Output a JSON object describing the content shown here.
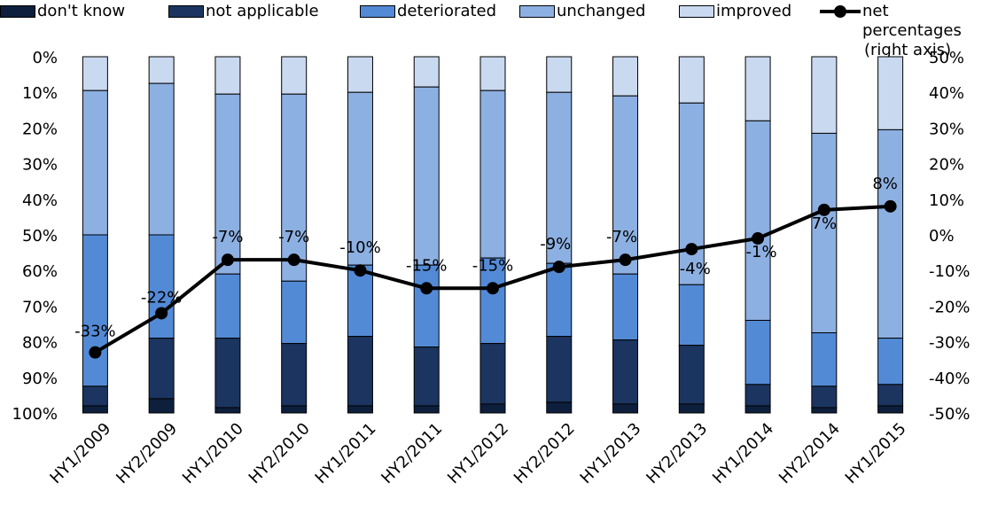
{
  "legend": {
    "dont_know": "don't know",
    "not_applicable": "not applicable",
    "deteriorated": "deteriorated",
    "unchanged": "unchanged",
    "improved": "improved",
    "net_line1": "net percentages",
    "net_line2": "(right axis)"
  },
  "colors": {
    "dont_know": "#0d1f3c",
    "not_applicable": "#1b3560",
    "deteriorated": "#538ad6",
    "unchanged": "#8db0e2",
    "improved": "#c9d9f0",
    "line": "#000000"
  },
  "chart_data": {
    "type": "bar",
    "stacked": true,
    "categories": [
      "HY1/2009",
      "HY2/2009",
      "HY1/2010",
      "HY2/2010",
      "HY1/2011",
      "HY2/2011",
      "HY1/2012",
      "HY2/2012",
      "HY1/2013",
      "HY2/2013",
      "HY1/2014",
      "HY2/2014",
      "HY1/2015"
    ],
    "series": [
      {
        "name": "improved",
        "values": [
          9.5,
          7.5,
          10.5,
          10.5,
          10,
          8.5,
          9.5,
          10,
          11,
          13,
          18,
          21.5,
          20.5
        ]
      },
      {
        "name": "unchanged",
        "values": [
          40.5,
          42.5,
          50.5,
          52.5,
          48.5,
          50,
          47,
          48,
          50,
          51,
          56,
          56,
          58.5
        ]
      },
      {
        "name": "deteriorated",
        "values": [
          42.5,
          29,
          18,
          17.5,
          20,
          23,
          24,
          20.5,
          18.5,
          17,
          18,
          15,
          13
        ]
      },
      {
        "name": "not applicable",
        "values": [
          5.5,
          17,
          19.5,
          17.5,
          19.5,
          16.5,
          17,
          18.5,
          18,
          16.5,
          6,
          6,
          6
        ]
      },
      {
        "name": "don't know",
        "values": [
          2,
          4,
          1.5,
          2,
          2,
          2,
          2.5,
          3,
          2.5,
          2.5,
          2,
          1.5,
          2
        ]
      }
    ],
    "net_percentages": {
      "name": "net percentages (right axis)",
      "values": [
        -33,
        -22,
        -7,
        -7,
        -10,
        -15,
        -15,
        -9,
        -7,
        -4,
        -1,
        7,
        8
      ],
      "labels": [
        "-33%",
        "-22%",
        "-7%",
        "-7%",
        "-10%",
        "-15%",
        "-15%",
        "-9%",
        "-7%",
        "-4%",
        "-1%",
        "7%",
        "8%"
      ]
    },
    "left_axis": {
      "ticks": [
        "0%",
        "10%",
        "20%",
        "30%",
        "40%",
        "50%",
        "60%",
        "70%",
        "80%",
        "90%",
        "100%"
      ],
      "range": [
        0,
        100
      ],
      "reversed": true
    },
    "right_axis": {
      "ticks": [
        "50%",
        "40%",
        "30%",
        "20%",
        "10%",
        "0%",
        "-10%",
        "-20%",
        "-30%",
        "-40%",
        "-50%"
      ],
      "range": [
        -50,
        50
      ]
    },
    "grid": false,
    "legend_position": "top"
  }
}
